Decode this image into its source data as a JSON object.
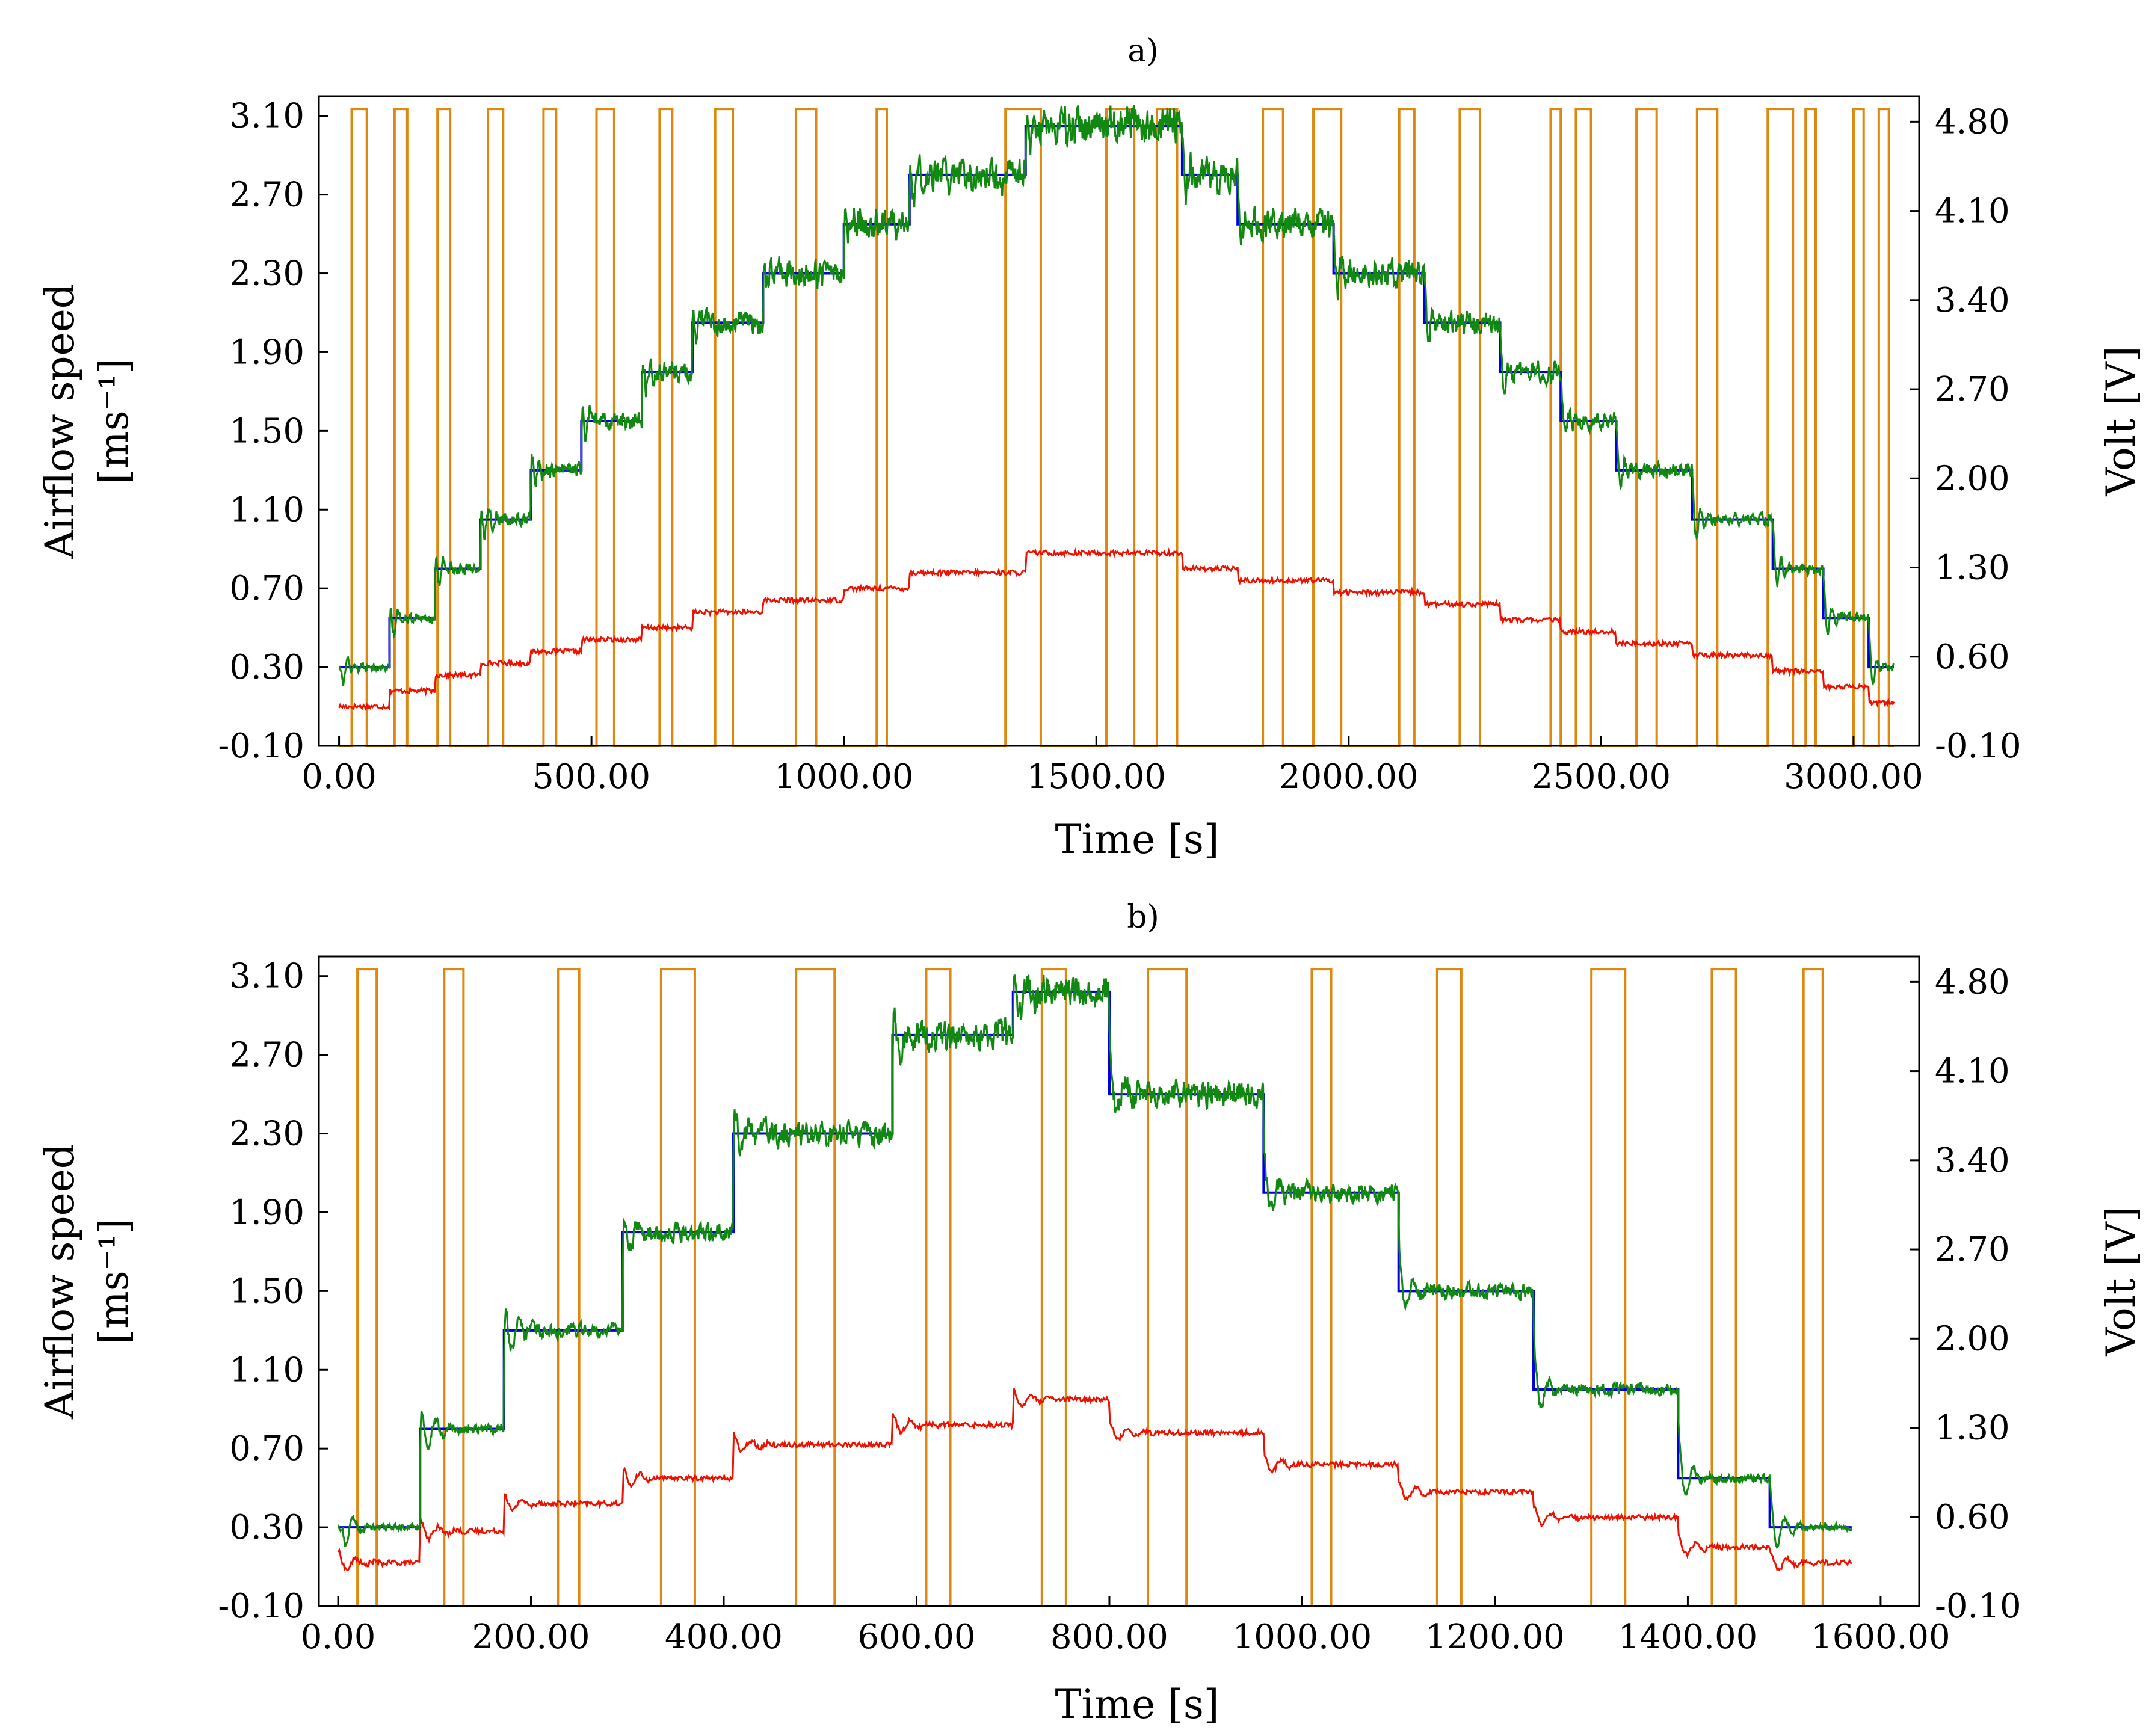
{
  "colors": {
    "setpoint": "#0000dd",
    "airflow": "#118811",
    "red": "#ee1100",
    "voltage": "#dd8811"
  },
  "chart_data": [
    {
      "type": "line",
      "title": "a)",
      "xlabel": "Time [s]",
      "ylabel": "Airflow speed",
      "ylabel_unit": "[ms⁻¹]",
      "y2label": "Volt [V]",
      "xlim": [
        -40,
        3130
      ],
      "ylim": [
        -0.1,
        3.2
      ],
      "y2lim": [
        -0.1,
        5.0
      ],
      "xticks": [
        0,
        500,
        1000,
        1500,
        2000,
        2500,
        3000
      ],
      "xtick_labels": [
        "0.00",
        "500.00",
        "1000.00",
        "1500.00",
        "2000.00",
        "2500.00",
        "3000.00"
      ],
      "yticks": [
        -0.1,
        0.3,
        0.7,
        1.1,
        1.5,
        1.9,
        2.3,
        2.7,
        3.1
      ],
      "ytick_labels": [
        "-0.10",
        "0.30",
        "0.70",
        "1.10",
        "1.50",
        "1.90",
        "2.30",
        "2.70",
        "3.10"
      ],
      "y2ticks": [
        -0.1,
        0.6,
        1.3,
        2.0,
        2.7,
        3.4,
        4.1,
        4.8
      ],
      "y2tick_labels": [
        "-0.10",
        "0.60",
        "1.30",
        "2.00",
        "2.70",
        "3.40",
        "4.10",
        "4.80"
      ],
      "xmax": 3080,
      "setpoint_steps": [
        [
          0,
          0.3
        ],
        [
          100,
          0.55
        ],
        [
          190,
          0.8
        ],
        [
          280,
          1.05
        ],
        [
          380,
          1.3
        ],
        [
          480,
          1.55
        ],
        [
          600,
          1.8
        ],
        [
          700,
          2.05
        ],
        [
          840,
          2.3
        ],
        [
          1000,
          2.55
        ],
        [
          1130,
          2.8
        ],
        [
          1360,
          3.05
        ],
        [
          1670,
          2.8
        ],
        [
          1780,
          2.55
        ],
        [
          1970,
          2.3
        ],
        [
          2150,
          2.05
        ],
        [
          2300,
          1.8
        ],
        [
          2420,
          1.55
        ],
        [
          2530,
          1.3
        ],
        [
          2680,
          1.05
        ],
        [
          2840,
          0.8
        ],
        [
          2940,
          0.55
        ],
        [
          3030,
          0.3
        ]
      ],
      "airflow_noise": 0.04,
      "red_steps": [
        [
          0,
          0.1
        ],
        [
          100,
          0.18
        ],
        [
          190,
          0.26
        ],
        [
          280,
          0.32
        ],
        [
          380,
          0.38
        ],
        [
          480,
          0.44
        ],
        [
          600,
          0.5
        ],
        [
          700,
          0.58
        ],
        [
          840,
          0.64
        ],
        [
          1000,
          0.7
        ],
        [
          1130,
          0.78
        ],
        [
          1360,
          0.88
        ],
        [
          1670,
          0.8
        ],
        [
          1780,
          0.74
        ],
        [
          1970,
          0.68
        ],
        [
          2150,
          0.62
        ],
        [
          2300,
          0.54
        ],
        [
          2420,
          0.48
        ],
        [
          2530,
          0.42
        ],
        [
          2680,
          0.36
        ],
        [
          2840,
          0.28
        ],
        [
          2940,
          0.2
        ],
        [
          3030,
          0.12
        ]
      ],
      "voltage_pulses": [
        [
          25,
          55
        ],
        [
          110,
          135
        ],
        [
          195,
          220
        ],
        [
          295,
          325
        ],
        [
          405,
          430
        ],
        [
          510,
          545
        ],
        [
          635,
          660
        ],
        [
          745,
          780
        ],
        [
          905,
          945
        ],
        [
          1065,
          1085
        ],
        [
          1320,
          1390
        ],
        [
          1520,
          1575
        ],
        [
          1620,
          1660
        ],
        [
          1830,
          1870
        ],
        [
          1930,
          1985
        ],
        [
          2100,
          2130
        ],
        [
          2220,
          2260
        ],
        [
          2400,
          2420
        ],
        [
          2450,
          2480
        ],
        [
          2570,
          2610
        ],
        [
          2690,
          2730
        ],
        [
          2830,
          2880
        ],
        [
          2905,
          2925
        ],
        [
          3000,
          3020
        ],
        [
          3050,
          3070
        ]
      ],
      "voltage_low": -0.1,
      "voltage_high": 4.9
    },
    {
      "type": "line",
      "title": "b)",
      "xlabel": "Time [s]",
      "ylabel": "Airflow speed",
      "ylabel_unit": "[ms⁻¹]",
      "y2label": "Volt [V]",
      "xlim": [
        -20,
        1640
      ],
      "ylim": [
        -0.1,
        3.2
      ],
      "y2lim": [
        -0.1,
        5.0
      ],
      "xticks": [
        0,
        200,
        400,
        600,
        800,
        1000,
        1200,
        1400,
        1600
      ],
      "xtick_labels": [
        "0.00",
        "200.00",
        "400.00",
        "600.00",
        "800.00",
        "1000.00",
        "1200.00",
        "1400.00",
        "1600.00"
      ],
      "yticks": [
        -0.1,
        0.3,
        0.7,
        1.1,
        1.5,
        1.9,
        2.3,
        2.7,
        3.1
      ],
      "ytick_labels": [
        "-0.10",
        "0.30",
        "0.70",
        "1.10",
        "1.50",
        "1.90",
        "2.30",
        "2.70",
        "3.10"
      ],
      "y2ticks": [
        -0.1,
        0.6,
        1.3,
        2.0,
        2.7,
        3.4,
        4.1,
        4.8
      ],
      "y2tick_labels": [
        "-0.10",
        "0.60",
        "1.30",
        "2.00",
        "2.70",
        "3.40",
        "4.10",
        "4.80"
      ],
      "xmax": 1570,
      "setpoint_steps": [
        [
          0,
          0.3
        ],
        [
          85,
          0.8
        ],
        [
          172,
          1.3
        ],
        [
          295,
          1.8
        ],
        [
          410,
          2.3
        ],
        [
          575,
          2.8
        ],
        [
          700,
          3.02
        ],
        [
          800,
          2.5
        ],
        [
          960,
          2.0
        ],
        [
          1100,
          1.5
        ],
        [
          1240,
          1.0
        ],
        [
          1390,
          0.55
        ],
        [
          1485,
          0.3
        ]
      ],
      "airflow_noise": 0.035,
      "red_steps": [
        [
          0,
          0.12
        ],
        [
          85,
          0.28
        ],
        [
          172,
          0.42
        ],
        [
          295,
          0.55
        ],
        [
          410,
          0.72
        ],
        [
          575,
          0.82
        ],
        [
          700,
          0.95
        ],
        [
          800,
          0.78
        ],
        [
          960,
          0.62
        ],
        [
          1100,
          0.48
        ],
        [
          1240,
          0.35
        ],
        [
          1390,
          0.2
        ],
        [
          1485,
          0.12
        ]
      ],
      "voltage_pulses": [
        [
          20,
          40
        ],
        [
          110,
          130
        ],
        [
          228,
          250
        ],
        [
          335,
          370
        ],
        [
          475,
          515
        ],
        [
          610,
          635
        ],
        [
          730,
          755
        ],
        [
          840,
          880
        ],
        [
          1010,
          1030
        ],
        [
          1140,
          1165
        ],
        [
          1300,
          1335
        ],
        [
          1425,
          1450
        ],
        [
          1520,
          1540
        ]
      ],
      "voltage_low": -0.1,
      "voltage_high": 4.9
    }
  ]
}
